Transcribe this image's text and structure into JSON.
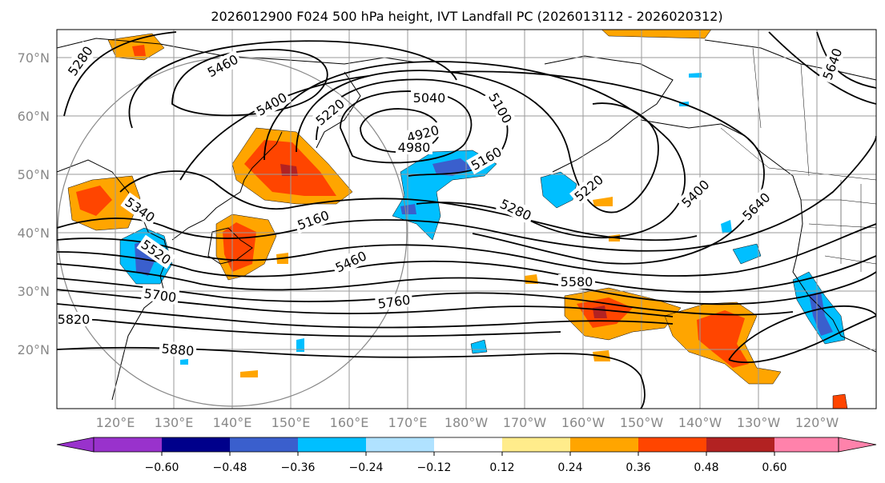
{
  "title": "2026012900 F024 500 hPa height, IVT Landfall PC (2026013112 - 2026020312)",
  "lat_labels": [
    "70°N",
    "60°N",
    "50°N",
    "40°N",
    "30°N",
    "20°N"
  ],
  "lon_labels": [
    "120°E",
    "130°E",
    "140°E",
    "150°E",
    "160°E",
    "170°E",
    "180°W",
    "170°W",
    "160°W",
    "150°W",
    "140°W",
    "130°W",
    "120°W"
  ],
  "contour_labels": [
    "5280",
    "5460",
    "5400",
    "5220",
    "5040",
    "5100",
    "4920",
    "4980",
    "5160",
    "5220",
    "5280",
    "5400",
    "5640",
    "5340",
    "5520",
    "5160",
    "5460",
    "5580",
    "5700",
    "5760",
    "5820",
    "5880",
    "5640"
  ],
  "colorbar": {
    "ticks": [
      "−0.60",
      "−0.48",
      "−0.36",
      "−0.24",
      "−0.12",
      "0.12",
      "0.24",
      "0.36",
      "0.48",
      "0.60"
    ],
    "colors": [
      "#9932cc",
      "#00008b",
      "#3a5fcd",
      "#00bfff",
      "#b0e2ff",
      "#ffffff",
      "#ffec8b",
      "#ffa500",
      "#ff4500",
      "#b22222",
      "#ff82ab"
    ]
  }
}
